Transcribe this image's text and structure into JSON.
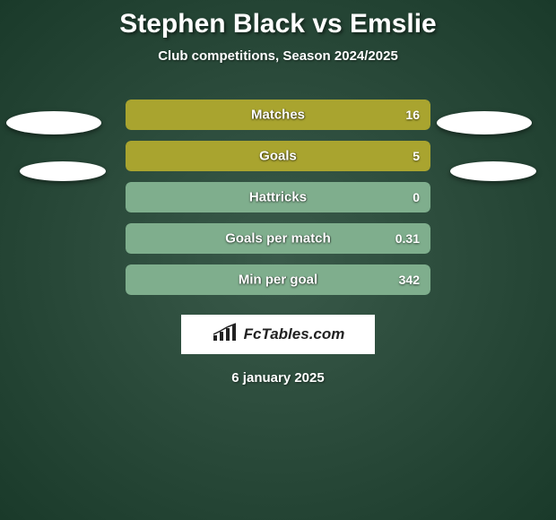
{
  "title": "Stephen Black vs Emslie",
  "subtitle": "Club competitions, Season 2024/2025",
  "date": "6 january 2025",
  "brand": {
    "text": "FcTables.com"
  },
  "colors": {
    "bar_bg": "#a9a42f",
    "bar_bg_alt": "#a9a42f",
    "bar_fill_left": "#9c9728",
    "bar_empty": "#7fae8d",
    "text": "#ffffff",
    "page_bg": "#2a4a3a"
  },
  "stats": [
    {
      "label": "Matches",
      "value_right": "16",
      "fill_pct": 100,
      "fill_color": "#a9a42f",
      "bg_color": "#a9a42f"
    },
    {
      "label": "Goals",
      "value_right": "5",
      "fill_pct": 100,
      "fill_color": "#a9a42f",
      "bg_color": "#a9a42f"
    },
    {
      "label": "Hattricks",
      "value_right": "0",
      "fill_pct": 0,
      "fill_color": "#a9a42f",
      "bg_color": "#7fae8d"
    },
    {
      "label": "Goals per match",
      "value_right": "0.31",
      "fill_pct": 0,
      "fill_color": "#a9a42f",
      "bg_color": "#7fae8d"
    },
    {
      "label": "Min per goal",
      "value_right": "342",
      "fill_pct": 0,
      "fill_color": "#a9a42f",
      "bg_color": "#7fae8d"
    }
  ],
  "decor_ellipses": [
    {
      "name": "ellipse-top-left"
    },
    {
      "name": "ellipse-bottom-left"
    },
    {
      "name": "ellipse-top-right"
    },
    {
      "name": "ellipse-bottom-right"
    }
  ]
}
